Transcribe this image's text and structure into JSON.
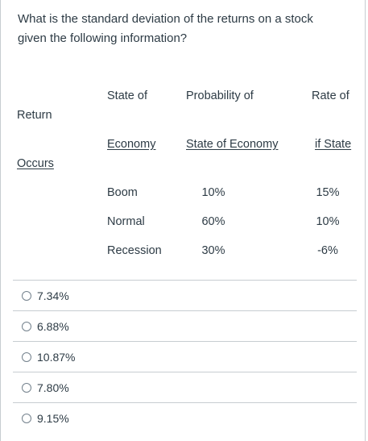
{
  "question": {
    "line1": "What is the standard deviation of the returns on a stock",
    "line2": "given the following information?"
  },
  "table": {
    "header_row1": {
      "col_state": "State of",
      "col_prob": "Probability of",
      "col_rate": "Rate of"
    },
    "return_label": "Return",
    "header_row2": {
      "col_state": "Economy",
      "col_prob": "State of Economy",
      "col_rate": "if State"
    },
    "occurs_label": "Occurs",
    "rows": [
      {
        "state": "Boom",
        "prob": "10%",
        "rate": "15%"
      },
      {
        "state": "Normal",
        "prob": "60%",
        "rate": "10%"
      },
      {
        "state": "Recession",
        "prob": "30%",
        "rate": "-6%"
      }
    ]
  },
  "answers": [
    {
      "label": "7.34%"
    },
    {
      "label": "6.88%"
    },
    {
      "label": "10.87%"
    },
    {
      "label": "7.80%"
    },
    {
      "label": "9.15%"
    }
  ]
}
